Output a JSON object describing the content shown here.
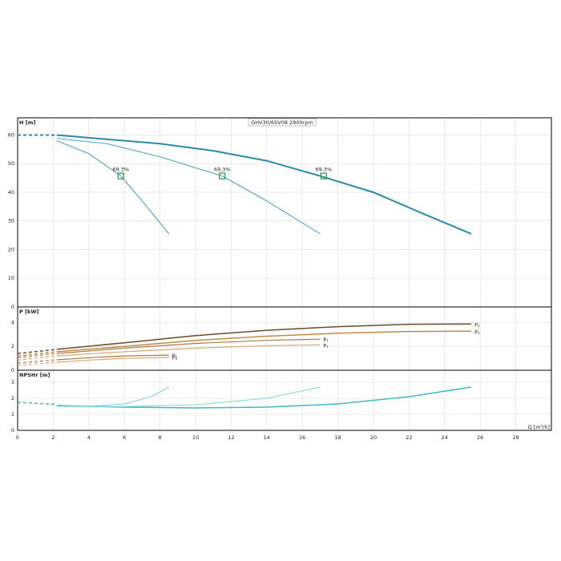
{
  "chart_data": [
    {
      "type": "line",
      "title": "GHV30/6SV08 2900rpm",
      "ylabel": "H [m]",
      "ylim": [
        0,
        66
      ],
      "yticks": [
        0,
        10,
        20,
        30,
        40,
        50,
        60
      ],
      "grid": true,
      "series": [
        {
          "color": "#2a8aa8",
          "style": "dashed",
          "width": 2,
          "x": [
            0,
            2.2
          ],
          "values": [
            60,
            60
          ]
        },
        {
          "color": "#2a8aa8",
          "width": 2,
          "x": [
            2.2,
            5,
            8,
            11,
            14,
            17,
            20,
            23,
            25.5
          ],
          "values": [
            60,
            58.5,
            57,
            54.5,
            51,
            45.7,
            40,
            32,
            25.5
          ]
        },
        {
          "color": "#5aaac8",
          "width": 1.2,
          "x": [
            2.2,
            5,
            8,
            11.5,
            14,
            17
          ],
          "values": [
            58.8,
            57,
            52.4,
            45.7,
            37,
            25.5
          ]
        },
        {
          "color": "#5aaac8",
          "width": 1.2,
          "x": [
            2.2,
            4,
            5.8,
            7,
            8.5
          ],
          "values": [
            58,
            53.5,
            45.7,
            37,
            25.5
          ]
        }
      ],
      "markers": [
        {
          "x": 5.8,
          "y": 45.7,
          "label": "69.3%"
        },
        {
          "x": 11.5,
          "y": 45.7,
          "label": "69.3%"
        },
        {
          "x": 17.2,
          "y": 45.7,
          "label": "69.3%"
        }
      ]
    },
    {
      "type": "line",
      "ylabel": "P [kW]",
      "ylim": [
        0,
        5.3
      ],
      "yticks": [
        0,
        2,
        4
      ],
      "grid": true,
      "series": [
        {
          "color": "#6b4a2a",
          "style": "dashed",
          "width": 1.5,
          "x": [
            0,
            2.2
          ],
          "values": [
            1.4,
            1.75
          ]
        },
        {
          "color": "#6b4a2a",
          "width": 1.5,
          "name": "P₁",
          "x": [
            2.2,
            6,
            10,
            14,
            18,
            22,
            25.5
          ],
          "values": [
            1.75,
            2.3,
            2.9,
            3.35,
            3.65,
            3.85,
            3.87
          ]
        },
        {
          "color": "#c08a40",
          "style": "dashed",
          "width": 1.5,
          "x": [
            0,
            2.2
          ],
          "values": [
            1.2,
            1.55
          ]
        },
        {
          "color": "#c08a40",
          "width": 1.5,
          "name": "P₂",
          "x": [
            2.2,
            6,
            10,
            14,
            18,
            22,
            25.5
          ],
          "values": [
            1.55,
            2.0,
            2.5,
            2.85,
            3.1,
            3.25,
            3.27
          ]
        },
        {
          "color": "#a87a48",
          "style": "dashed",
          "width": 1.2,
          "x": [
            0,
            2.2
          ],
          "values": [
            1.05,
            1.4
          ]
        },
        {
          "color": "#a87a48",
          "width": 1.2,
          "name": "P₁",
          "x": [
            2.2,
            6,
            10,
            14,
            17
          ],
          "values": [
            1.4,
            1.85,
            2.25,
            2.5,
            2.6
          ]
        },
        {
          "color": "#d8a870",
          "style": "dashed",
          "width": 1.2,
          "x": [
            0,
            2.2
          ],
          "values": [
            0.85,
            1.2
          ]
        },
        {
          "color": "#d8a870",
          "width": 1.2,
          "name": "P₂",
          "x": [
            2.2,
            6,
            10,
            14,
            17
          ],
          "values": [
            1.2,
            1.55,
            1.85,
            2.05,
            2.13
          ]
        },
        {
          "color": "#a87a48",
          "style": "dashed",
          "width": 1.2,
          "x": [
            0,
            2.2
          ],
          "values": [
            0.6,
            0.87
          ]
        },
        {
          "color": "#a87a48",
          "width": 1.2,
          "name": "P₁",
          "x": [
            2.2,
            4,
            6,
            8.5
          ],
          "values": [
            0.87,
            1.05,
            1.2,
            1.27
          ]
        },
        {
          "color": "#d8a870",
          "style": "dashed",
          "width": 1.2,
          "x": [
            0,
            2.2
          ],
          "values": [
            0.4,
            0.67
          ]
        },
        {
          "color": "#d8a870",
          "width": 1.2,
          "name": "P₂",
          "x": [
            2.2,
            4,
            6,
            8.5
          ],
          "values": [
            0.67,
            0.85,
            1.0,
            1.07
          ]
        }
      ]
    },
    {
      "type": "line",
      "ylabel": "NPSHr [m]",
      "xlabel": "Q [m³/h]",
      "xlim": [
        0,
        30
      ],
      "xticks": [
        0,
        2,
        4,
        6,
        8,
        10,
        12,
        14,
        16,
        18,
        20,
        22,
        24,
        26,
        28
      ],
      "ylim": [
        0,
        3.75
      ],
      "yticks": [
        0,
        1,
        2,
        3
      ],
      "grid": true,
      "series": [
        {
          "color": "#3fb8c0",
          "style": "dashed",
          "width": 1.5,
          "x": [
            0,
            2.2
          ],
          "values": [
            1.75,
            1.62
          ]
        },
        {
          "color": "#3fb8c0",
          "width": 1.5,
          "x": [
            2.2,
            6,
            10,
            14,
            18,
            22,
            25.5
          ],
          "values": [
            1.55,
            1.45,
            1.4,
            1.45,
            1.65,
            2.1,
            2.7
          ]
        },
        {
          "color": "#7fd4d8",
          "width": 1,
          "x": [
            2.2,
            6,
            10,
            14,
            17
          ],
          "values": [
            1.5,
            1.48,
            1.6,
            2.0,
            2.7
          ]
        },
        {
          "color": "#7fd4d8",
          "width": 1,
          "x": [
            2.2,
            4,
            6,
            7.5,
            8.5
          ],
          "values": [
            1.5,
            1.5,
            1.65,
            2.1,
            2.7
          ]
        }
      ]
    }
  ]
}
